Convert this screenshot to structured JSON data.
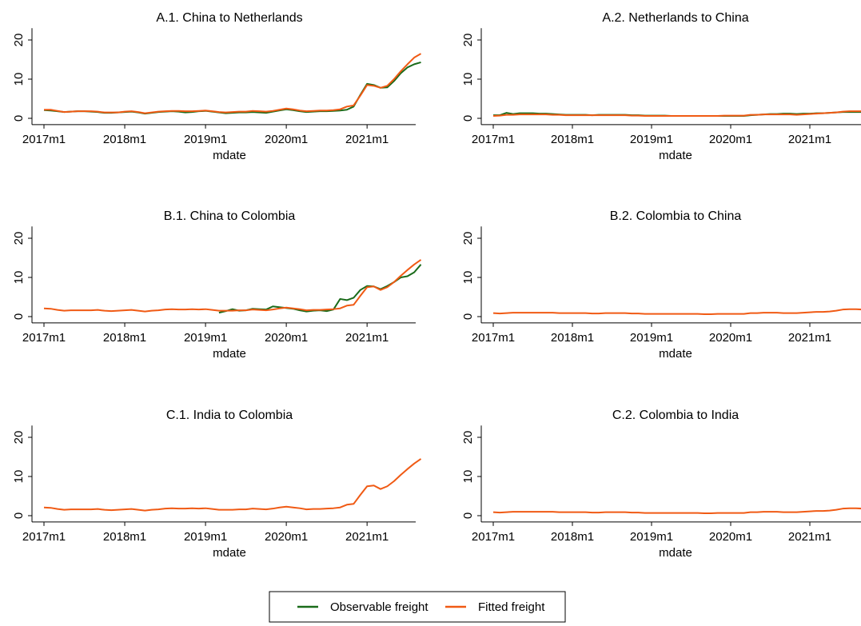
{
  "chart_data": [
    {
      "type": "line",
      "title": "A.1. China to Netherlands",
      "xlabel": "mdate",
      "x": [
        "2017m1",
        "2017m2",
        "2017m3",
        "2017m4",
        "2017m5",
        "2017m6",
        "2017m7",
        "2017m8",
        "2017m9",
        "2017m10",
        "2017m11",
        "2017m12",
        "2018m1",
        "2018m2",
        "2018m3",
        "2018m4",
        "2018m5",
        "2018m6",
        "2018m7",
        "2018m8",
        "2018m9",
        "2018m10",
        "2018m11",
        "2018m12",
        "2019m1",
        "2019m2",
        "2019m3",
        "2019m4",
        "2019m5",
        "2019m6",
        "2019m7",
        "2019m8",
        "2019m9",
        "2019m10",
        "2019m11",
        "2019m12",
        "2020m1",
        "2020m2",
        "2020m3",
        "2020m4",
        "2020m5",
        "2020m6",
        "2020m7",
        "2020m8",
        "2020m9",
        "2020m10",
        "2020m11",
        "2020m12",
        "2021m1",
        "2021m2",
        "2021m3",
        "2021m4",
        "2021m5",
        "2021m6",
        "2021m7",
        "2021m8",
        "2021m9"
      ],
      "xticks": [
        "2017m1",
        "2018m1",
        "2019m1",
        "2020m1",
        "2021m1"
      ],
      "ylim": [
        -1.6,
        23
      ],
      "yticks": [
        0,
        10,
        20
      ],
      "series": [
        {
          "name": "Observable freight",
          "color": "#1a6b1a",
          "values": [
            2.1,
            2.0,
            1.8,
            1.6,
            1.7,
            1.8,
            1.8,
            1.7,
            1.6,
            1.4,
            1.4,
            1.5,
            1.6,
            1.7,
            1.5,
            1.2,
            1.4,
            1.6,
            1.7,
            1.8,
            1.7,
            1.5,
            1.6,
            1.8,
            1.9,
            1.7,
            1.5,
            1.3,
            1.4,
            1.5,
            1.5,
            1.6,
            1.5,
            1.4,
            1.7,
            2.0,
            2.3,
            2.1,
            1.8,
            1.6,
            1.7,
            1.8,
            1.8,
            1.9,
            2.0,
            2.2,
            3.0,
            6.0,
            8.8,
            8.5,
            7.8,
            7.9,
            9.5,
            11.5,
            13.0,
            13.8,
            14.3
          ]
        },
        {
          "name": "Fitted freight",
          "color": "#f05a14",
          "values": [
            2.2,
            2.2,
            1.9,
            1.6,
            1.7,
            1.8,
            1.8,
            1.8,
            1.7,
            1.5,
            1.5,
            1.5,
            1.7,
            1.8,
            1.6,
            1.3,
            1.5,
            1.7,
            1.8,
            1.9,
            1.9,
            1.8,
            1.8,
            1.9,
            2.0,
            1.8,
            1.6,
            1.5,
            1.6,
            1.7,
            1.7,
            1.9,
            1.8,
            1.7,
            1.9,
            2.2,
            2.5,
            2.3,
            2.0,
            1.8,
            1.9,
            2.0,
            2.0,
            2.1,
            2.3,
            3.0,
            3.3,
            5.8,
            8.5,
            8.3,
            7.8,
            8.3,
            10.0,
            12.0,
            13.8,
            15.5,
            16.5
          ]
        }
      ]
    },
    {
      "type": "line",
      "title": "A.2. Netherlands to China",
      "xlabel": "mdate",
      "x": [
        "2017m1",
        "2017m2",
        "2017m3",
        "2017m4",
        "2017m5",
        "2017m6",
        "2017m7",
        "2017m8",
        "2017m9",
        "2017m10",
        "2017m11",
        "2017m12",
        "2018m1",
        "2018m2",
        "2018m3",
        "2018m4",
        "2018m5",
        "2018m6",
        "2018m7",
        "2018m8",
        "2018m9",
        "2018m10",
        "2018m11",
        "2018m12",
        "2019m1",
        "2019m2",
        "2019m3",
        "2019m4",
        "2019m5",
        "2019m6",
        "2019m7",
        "2019m8",
        "2019m9",
        "2019m10",
        "2019m11",
        "2019m12",
        "2020m1",
        "2020m2",
        "2020m3",
        "2020m4",
        "2020m5",
        "2020m6",
        "2020m7",
        "2020m8",
        "2020m9",
        "2020m10",
        "2020m11",
        "2020m12",
        "2021m1",
        "2021m2",
        "2021m3",
        "2021m4",
        "2021m5",
        "2021m6",
        "2021m7",
        "2021m8",
        "2021m9"
      ],
      "xticks": [
        "2017m1",
        "2018m1",
        "2019m1",
        "2020m1",
        "2021m1"
      ],
      "ylim": [
        -1.6,
        23
      ],
      "yticks": [
        0,
        10,
        20
      ],
      "series": [
        {
          "name": "Observable freight",
          "color": "#1a6b1a",
          "values": [
            0.8,
            0.8,
            1.4,
            1.1,
            1.3,
            1.3,
            1.3,
            1.2,
            1.2,
            1.1,
            1.0,
            0.9,
            0.9,
            0.9,
            0.9,
            0.8,
            0.9,
            0.9,
            0.9,
            0.9,
            0.9,
            0.8,
            0.8,
            0.7,
            0.7,
            0.7,
            0.7,
            0.6,
            0.6,
            0.6,
            0.6,
            0.6,
            0.6,
            0.6,
            0.6,
            0.6,
            0.6,
            0.6,
            0.6,
            0.8,
            0.9,
            1.0,
            1.1,
            1.1,
            1.2,
            1.2,
            1.1,
            1.2,
            1.2,
            1.3,
            1.3,
            1.4,
            1.5,
            1.6,
            1.6,
            1.6,
            1.6
          ]
        },
        {
          "name": "Fitted freight",
          "color": "#f05a14",
          "values": [
            0.6,
            0.7,
            0.9,
            0.9,
            1.0,
            1.0,
            1.0,
            1.0,
            1.0,
            0.9,
            0.9,
            0.8,
            0.8,
            0.8,
            0.8,
            0.8,
            0.8,
            0.8,
            0.8,
            0.8,
            0.8,
            0.7,
            0.7,
            0.6,
            0.6,
            0.6,
            0.6,
            0.6,
            0.6,
            0.6,
            0.6,
            0.6,
            0.6,
            0.6,
            0.6,
            0.7,
            0.7,
            0.7,
            0.7,
            0.9,
            0.9,
            1.0,
            1.0,
            1.0,
            1.0,
            1.0,
            0.9,
            1.0,
            1.1,
            1.2,
            1.3,
            1.4,
            1.5,
            1.7,
            1.8,
            1.8,
            1.8
          ]
        }
      ]
    },
    {
      "type": "line",
      "title": "B.1. China to Colombia",
      "xlabel": "mdate",
      "x": [
        "2017m1",
        "2017m2",
        "2017m3",
        "2017m4",
        "2017m5",
        "2017m6",
        "2017m7",
        "2017m8",
        "2017m9",
        "2017m10",
        "2017m11",
        "2017m12",
        "2018m1",
        "2018m2",
        "2018m3",
        "2018m4",
        "2018m5",
        "2018m6",
        "2018m7",
        "2018m8",
        "2018m9",
        "2018m10",
        "2018m11",
        "2018m12",
        "2019m1",
        "2019m2",
        "2019m3",
        "2019m4",
        "2019m5",
        "2019m6",
        "2019m7",
        "2019m8",
        "2019m9",
        "2019m10",
        "2019m11",
        "2019m12",
        "2020m1",
        "2020m2",
        "2020m3",
        "2020m4",
        "2020m5",
        "2020m6",
        "2020m7",
        "2020m8",
        "2020m9",
        "2020m10",
        "2020m11",
        "2020m12",
        "2021m1",
        "2021m2",
        "2021m3",
        "2021m4",
        "2021m5",
        "2021m6",
        "2021m7",
        "2021m8",
        "2021m9"
      ],
      "xticks": [
        "2017m1",
        "2018m1",
        "2019m1",
        "2020m1",
        "2021m1"
      ],
      "ylim": [
        -1.6,
        23
      ],
      "yticks": [
        0,
        10,
        20
      ],
      "series": [
        {
          "name": "Observable freight",
          "color": "#1a6b1a",
          "values": [
            null,
            null,
            null,
            null,
            null,
            null,
            null,
            null,
            null,
            null,
            null,
            null,
            null,
            null,
            null,
            null,
            null,
            null,
            null,
            null,
            null,
            null,
            null,
            null,
            null,
            null,
            1.0,
            1.4,
            1.9,
            1.5,
            1.6,
            2.0,
            1.9,
            1.8,
            2.6,
            2.4,
            2.2,
            2.0,
            1.6,
            1.3,
            1.5,
            1.6,
            1.4,
            1.8,
            4.5,
            4.2,
            4.8,
            6.8,
            7.8,
            7.7,
            7.0,
            7.8,
            8.8,
            10.0,
            10.3,
            11.3,
            13.3
          ]
        },
        {
          "name": "Fitted freight",
          "color": "#f05a14",
          "values": [
            2.1,
            2.0,
            1.7,
            1.5,
            1.6,
            1.6,
            1.6,
            1.6,
            1.7,
            1.5,
            1.4,
            1.5,
            1.6,
            1.7,
            1.5,
            1.3,
            1.5,
            1.6,
            1.8,
            1.9,
            1.8,
            1.8,
            1.9,
            1.8,
            1.9,
            1.7,
            1.5,
            1.5,
            1.5,
            1.6,
            1.6,
            1.8,
            1.7,
            1.6,
            1.8,
            2.1,
            2.3,
            2.1,
            1.9,
            1.6,
            1.7,
            1.7,
            1.8,
            1.9,
            2.1,
            2.8,
            3.0,
            5.3,
            7.5,
            7.7,
            6.8,
            7.5,
            8.8,
            10.4,
            11.9,
            13.3,
            14.5
          ]
        }
      ]
    },
    {
      "type": "line",
      "title": "B.2. Colombia to China",
      "xlabel": "mdate",
      "x": [
        "2017m1",
        "2017m2",
        "2017m3",
        "2017m4",
        "2017m5",
        "2017m6",
        "2017m7",
        "2017m8",
        "2017m9",
        "2017m10",
        "2017m11",
        "2017m12",
        "2018m1",
        "2018m2",
        "2018m3",
        "2018m4",
        "2018m5",
        "2018m6",
        "2018m7",
        "2018m8",
        "2018m9",
        "2018m10",
        "2018m11",
        "2018m12",
        "2019m1",
        "2019m2",
        "2019m3",
        "2019m4",
        "2019m5",
        "2019m6",
        "2019m7",
        "2019m8",
        "2019m9",
        "2019m10",
        "2019m11",
        "2019m12",
        "2020m1",
        "2020m2",
        "2020m3",
        "2020m4",
        "2020m5",
        "2020m6",
        "2020m7",
        "2020m8",
        "2020m9",
        "2020m10",
        "2020m11",
        "2020m12",
        "2021m1",
        "2021m2",
        "2021m3",
        "2021m4",
        "2021m5",
        "2021m6",
        "2021m7",
        "2021m8",
        "2021m9"
      ],
      "xticks": [
        "2017m1",
        "2018m1",
        "2019m1",
        "2020m1",
        "2021m1"
      ],
      "ylim": [
        -1.6,
        23
      ],
      "yticks": [
        0,
        10,
        20
      ],
      "series": [
        {
          "name": "Fitted freight",
          "color": "#f05a14",
          "values": [
            0.9,
            0.8,
            0.9,
            1.0,
            1.0,
            1.0,
            1.0,
            1.0,
            1.0,
            1.0,
            0.9,
            0.9,
            0.9,
            0.9,
            0.9,
            0.8,
            0.8,
            0.9,
            0.9,
            0.9,
            0.9,
            0.8,
            0.8,
            0.7,
            0.7,
            0.7,
            0.7,
            0.7,
            0.7,
            0.7,
            0.7,
            0.7,
            0.6,
            0.6,
            0.7,
            0.7,
            0.7,
            0.7,
            0.7,
            0.9,
            0.9,
            1.0,
            1.0,
            1.0,
            0.9,
            0.9,
            0.9,
            1.0,
            1.1,
            1.2,
            1.2,
            1.3,
            1.5,
            1.8,
            1.9,
            1.9,
            1.8
          ]
        }
      ]
    },
    {
      "type": "line",
      "title": "C.1. India to Colombia",
      "xlabel": "mdate",
      "x": [
        "2017m1",
        "2017m2",
        "2017m3",
        "2017m4",
        "2017m5",
        "2017m6",
        "2017m7",
        "2017m8",
        "2017m9",
        "2017m10",
        "2017m11",
        "2017m12",
        "2018m1",
        "2018m2",
        "2018m3",
        "2018m4",
        "2018m5",
        "2018m6",
        "2018m7",
        "2018m8",
        "2018m9",
        "2018m10",
        "2018m11",
        "2018m12",
        "2019m1",
        "2019m2",
        "2019m3",
        "2019m4",
        "2019m5",
        "2019m6",
        "2019m7",
        "2019m8",
        "2019m9",
        "2019m10",
        "2019m11",
        "2019m12",
        "2020m1",
        "2020m2",
        "2020m3",
        "2020m4",
        "2020m5",
        "2020m6",
        "2020m7",
        "2020m8",
        "2020m9",
        "2020m10",
        "2020m11",
        "2020m12",
        "2021m1",
        "2021m2",
        "2021m3",
        "2021m4",
        "2021m5",
        "2021m6",
        "2021m7",
        "2021m8",
        "2021m9"
      ],
      "xticks": [
        "2017m1",
        "2018m1",
        "2019m1",
        "2020m1",
        "2021m1"
      ],
      "ylim": [
        -1.6,
        23
      ],
      "yticks": [
        0,
        10,
        20
      ],
      "series": [
        {
          "name": "Fitted freight",
          "color": "#f05a14",
          "values": [
            2.1,
            2.0,
            1.7,
            1.5,
            1.6,
            1.6,
            1.6,
            1.6,
            1.7,
            1.5,
            1.4,
            1.5,
            1.6,
            1.7,
            1.5,
            1.3,
            1.5,
            1.6,
            1.8,
            1.9,
            1.8,
            1.8,
            1.9,
            1.8,
            1.9,
            1.7,
            1.5,
            1.5,
            1.5,
            1.6,
            1.6,
            1.8,
            1.7,
            1.6,
            1.8,
            2.1,
            2.3,
            2.1,
            1.9,
            1.6,
            1.7,
            1.7,
            1.8,
            1.9,
            2.1,
            2.8,
            3.0,
            5.3,
            7.5,
            7.7,
            6.8,
            7.5,
            8.8,
            10.4,
            11.9,
            13.3,
            14.5
          ]
        }
      ]
    },
    {
      "type": "line",
      "title": "C.2. Colombia to India",
      "xlabel": "mdate",
      "x": [
        "2017m1",
        "2017m2",
        "2017m3",
        "2017m4",
        "2017m5",
        "2017m6",
        "2017m7",
        "2017m8",
        "2017m9",
        "2017m10",
        "2017m11",
        "2017m12",
        "2018m1",
        "2018m2",
        "2018m3",
        "2018m4",
        "2018m5",
        "2018m6",
        "2018m7",
        "2018m8",
        "2018m9",
        "2018m10",
        "2018m11",
        "2018m12",
        "2019m1",
        "2019m2",
        "2019m3",
        "2019m4",
        "2019m5",
        "2019m6",
        "2019m7",
        "2019m8",
        "2019m9",
        "2019m10",
        "2019m11",
        "2019m12",
        "2020m1",
        "2020m2",
        "2020m3",
        "2020m4",
        "2020m5",
        "2020m6",
        "2020m7",
        "2020m8",
        "2020m9",
        "2020m10",
        "2020m11",
        "2020m12",
        "2021m1",
        "2021m2",
        "2021m3",
        "2021m4",
        "2021m5",
        "2021m6",
        "2021m7",
        "2021m8",
        "2021m9"
      ],
      "xticks": [
        "2017m1",
        "2018m1",
        "2019m1",
        "2020m1",
        "2021m1"
      ],
      "ylim": [
        -1.6,
        23
      ],
      "yticks": [
        0,
        10,
        20
      ],
      "series": [
        {
          "name": "Fitted freight",
          "color": "#f05a14",
          "values": [
            0.9,
            0.8,
            0.9,
            1.0,
            1.0,
            1.0,
            1.0,
            1.0,
            1.0,
            1.0,
            0.9,
            0.9,
            0.9,
            0.9,
            0.9,
            0.8,
            0.8,
            0.9,
            0.9,
            0.9,
            0.9,
            0.8,
            0.8,
            0.7,
            0.7,
            0.7,
            0.7,
            0.7,
            0.7,
            0.7,
            0.7,
            0.7,
            0.6,
            0.6,
            0.7,
            0.7,
            0.7,
            0.7,
            0.7,
            0.9,
            0.9,
            1.0,
            1.0,
            1.0,
            0.9,
            0.9,
            0.9,
            1.0,
            1.1,
            1.2,
            1.2,
            1.3,
            1.5,
            1.8,
            1.9,
            1.9,
            1.8
          ]
        }
      ]
    }
  ]
}
